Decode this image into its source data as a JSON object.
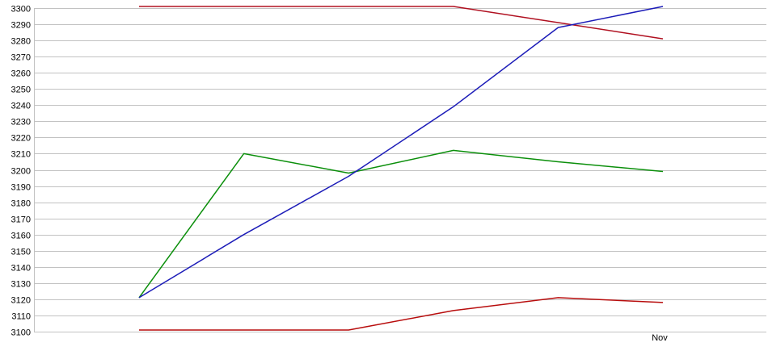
{
  "page": {
    "background": "#ffffff"
  },
  "chart": {
    "grid_color": "#c2c2c2",
    "axis_color": "#c2c2c2",
    "text_color": "#000000"
  },
  "chart_data": {
    "type": "line",
    "title": "",
    "xlabel": "",
    "ylabel": "",
    "ylim": [
      3100,
      3300
    ],
    "ytick_step": 10,
    "y_tick_labels": [
      "3300",
      "3290",
      "3280",
      "3270",
      "3260",
      "3250",
      "3240",
      "3230",
      "3220",
      "3210",
      "3200",
      "3190",
      "3180",
      "3170",
      "3160",
      "3150",
      "3140",
      "3130",
      "3120",
      "3110",
      "3100"
    ],
    "x": [
      0,
      1,
      2,
      3,
      4,
      5
    ],
    "x_labels": [
      "",
      "",
      "",
      "",
      "",
      "Nov"
    ],
    "grid": "horizontal",
    "legend_position": "none",
    "series": [
      {
        "name": "red-upper-line",
        "color": "#b01020",
        "values": [
          3301,
          3301,
          3301,
          3301,
          3291,
          3281
        ]
      },
      {
        "name": "red-lower-line",
        "color": "#b80d0d",
        "values": [
          3101,
          3101,
          3101,
          3113,
          3121,
          3118
        ]
      },
      {
        "name": "green-line",
        "color": "#0b8f0b",
        "values": [
          3121,
          3210,
          3198,
          3212,
          3205,
          3199
        ]
      },
      {
        "name": "blue-line",
        "color": "#1c1cb8",
        "values": [
          3121,
          3160,
          3196,
          3239,
          3288,
          3301
        ]
      }
    ]
  }
}
